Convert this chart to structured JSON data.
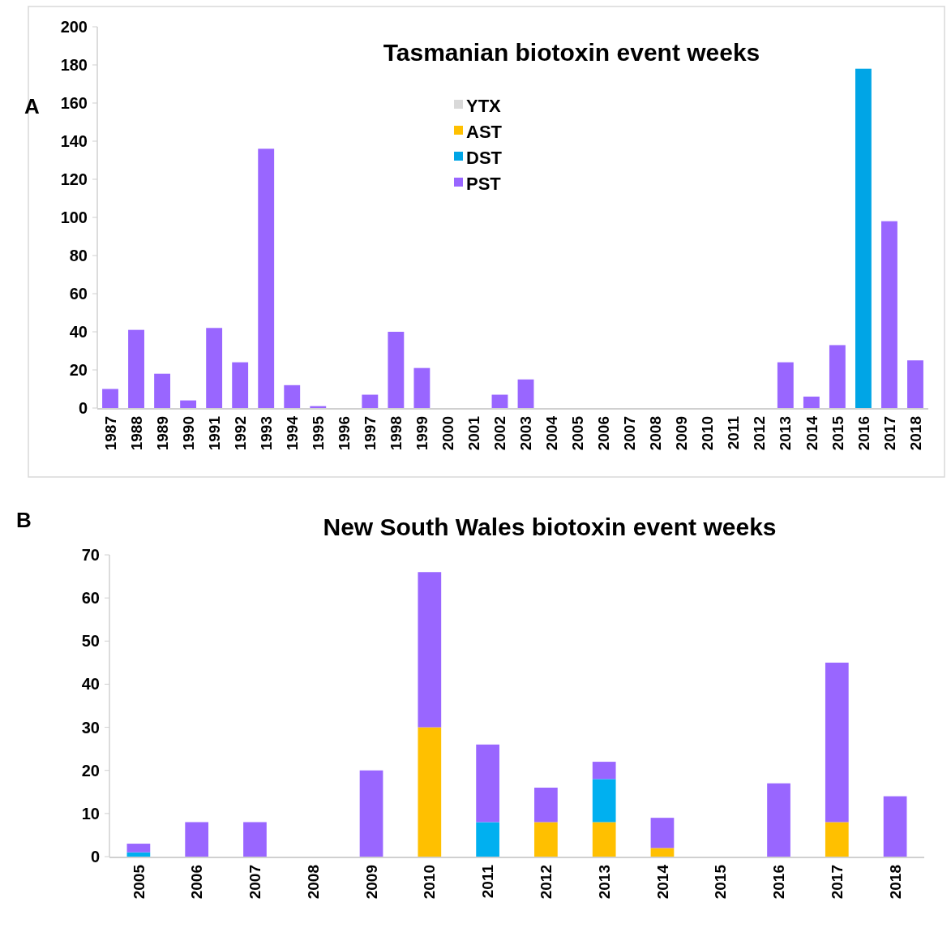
{
  "chart_data": [
    {
      "type": "bar",
      "title": "Tasmanian biotoxin event weeks",
      "annotations": [
        "A"
      ],
      "stacked": true,
      "legend": "top",
      "categories": [
        "1987",
        "1988",
        "1989",
        "1990",
        "1991",
        "1992",
        "1993",
        "1994",
        "1995",
        "1996",
        "1997",
        "1998",
        "1999",
        "2000",
        "2001",
        "2002",
        "2003",
        "2004",
        "2005",
        "2006",
        "2007",
        "2008",
        "2009",
        "2010",
        "2011",
        "2012",
        "2013",
        "2014",
        "2015",
        "2016",
        "2017",
        "2018"
      ],
      "series": [
        {
          "name": "YTX",
          "color": "#d9d9d9",
          "values": [
            0,
            0,
            0,
            0,
            0,
            0,
            0,
            0,
            0,
            0,
            0,
            0,
            0,
            0,
            0,
            0,
            0,
            0,
            0,
            0,
            0,
            0,
            0,
            0,
            0,
            0,
            0,
            0,
            0,
            0,
            0,
            0
          ]
        },
        {
          "name": "AST",
          "color": "#ffc000",
          "values": [
            0,
            0,
            0,
            0,
            0,
            0,
            0,
            0,
            0,
            0,
            0,
            0,
            0,
            0,
            0,
            0,
            0,
            0,
            0,
            0,
            0,
            0,
            0,
            0,
            0,
            0,
            0,
            0,
            0,
            0,
            0,
            0
          ]
        },
        {
          "name": "DST",
          "color": "#00a5e6",
          "values": [
            0,
            0,
            0,
            0,
            0,
            0,
            0,
            0,
            0,
            0,
            0,
            0,
            0,
            0,
            0,
            0,
            0,
            0,
            0,
            0,
            0,
            0,
            0,
            0,
            0,
            0,
            0,
            0,
            0,
            178,
            0,
            0
          ]
        },
        {
          "name": "PST",
          "color": "#9966ff",
          "values": [
            10,
            41,
            18,
            4,
            42,
            24,
            136,
            12,
            1,
            0,
            7,
            40,
            21,
            0,
            0,
            7,
            15,
            0,
            0,
            0,
            0,
            0,
            0,
            0,
            0,
            0,
            24,
            6,
            33,
            0,
            98,
            25
          ]
        }
      ],
      "ylim": [
        0,
        200
      ],
      "yticks": [
        0,
        20,
        40,
        60,
        80,
        100,
        120,
        140,
        160,
        180,
        200
      ]
    },
    {
      "type": "bar",
      "title": "New South Wales biotoxin event weeks",
      "annotations": [
        "B"
      ],
      "stacked": true,
      "categories": [
        "2005",
        "2006",
        "2007",
        "2008",
        "2009",
        "2010",
        "2011",
        "2012",
        "2013",
        "2014",
        "2015",
        "2016",
        "2017",
        "2018"
      ],
      "series": [
        {
          "color": "#ffc000",
          "values": [
            0,
            0,
            0,
            0,
            0,
            30,
            0,
            8,
            8,
            2,
            0,
            0,
            8,
            0
          ]
        },
        {
          "color": "#00b0f0",
          "values": [
            1,
            0,
            0,
            0,
            0,
            0,
            8,
            0,
            10,
            0,
            0,
            0,
            0,
            0
          ]
        },
        {
          "color": "#9966ff",
          "values": [
            2,
            8,
            8,
            0,
            20,
            36,
            18,
            8,
            4,
            7,
            0,
            17,
            37,
            14
          ]
        }
      ],
      "ylim": [
        0,
        70
      ],
      "yticks": [
        0,
        10,
        20,
        30,
        40,
        50,
        60,
        70
      ]
    }
  ]
}
